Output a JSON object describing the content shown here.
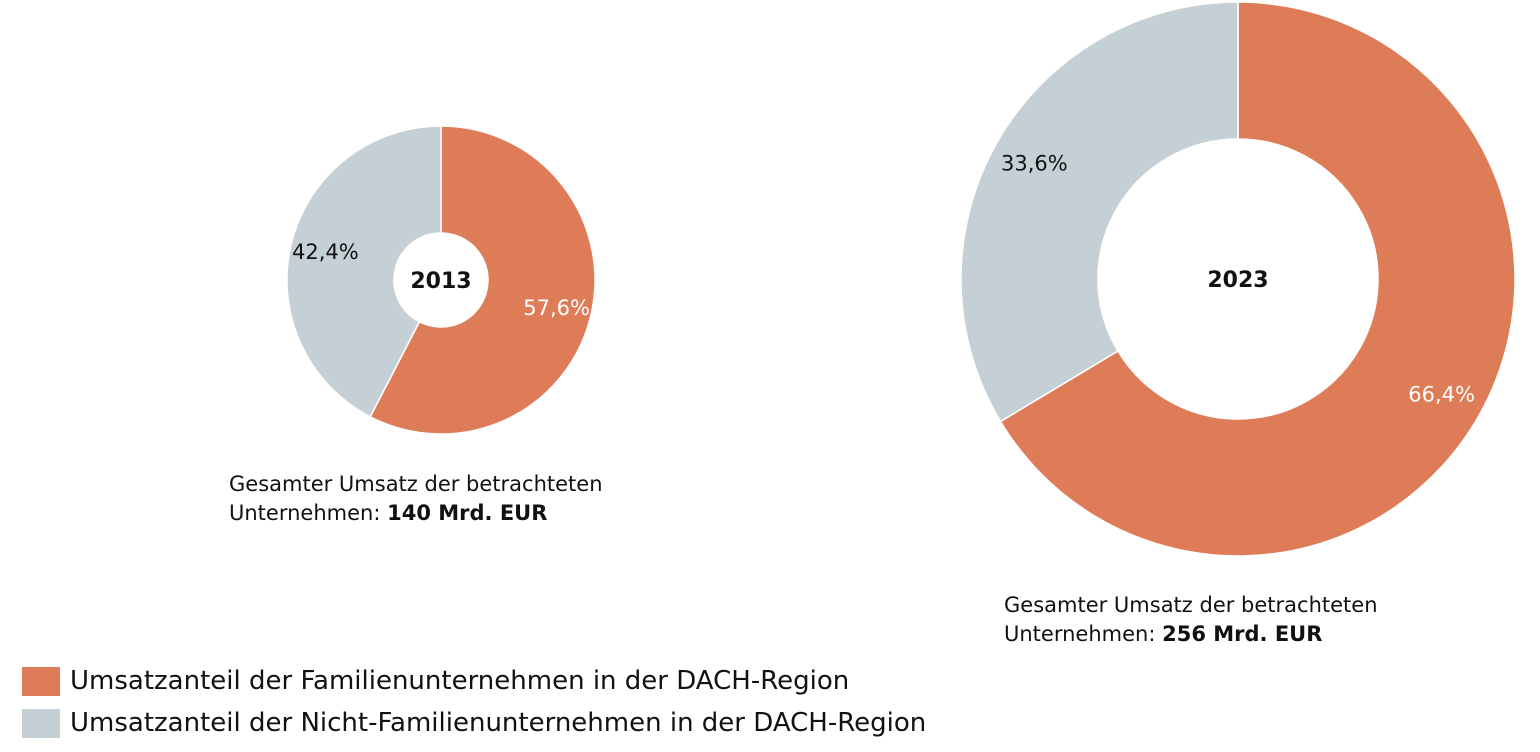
{
  "colors": {
    "family": "#DF7C58",
    "non_family": "#C5D0D6",
    "label_on_family": "#ffffff",
    "label_on_non_family": "#111111"
  },
  "chart_data": [
    {
      "type": "pie",
      "center_label": "2013",
      "slices": [
        {
          "series": "family",
          "value": 57.6,
          "label": "57,6%"
        },
        {
          "series": "non_family",
          "value": 42.4,
          "label": "42,4%"
        }
      ],
      "caption_text": "Gesamter Umsatz der betrachteten Unternehmen:",
      "caption_value": "140 Mrd. EUR",
      "total_value": 140
    },
    {
      "type": "pie",
      "center_label": "2023",
      "slices": [
        {
          "series": "family",
          "value": 66.4,
          "label": "66,4%"
        },
        {
          "series": "non_family",
          "value": 33.6,
          "label": "33,6%"
        }
      ],
      "caption_text": "Gesamter Umsatz der betrachteten Unternehmen:",
      "caption_value": "256 Mrd. EUR",
      "total_value": 256
    }
  ],
  "captions": [
    {
      "line1": "Gesamter Umsatz der betrachteten",
      "line2_prefix": "Unternehmen:",
      "value": "140 Mrd. EUR"
    },
    {
      "line1": "Gesamter Umsatz der betrachteten",
      "line2_prefix": "Unternehmen:",
      "value": "256 Mrd. EUR"
    }
  ],
  "legend": {
    "items": [
      {
        "label": "Umsatzanteil der Familienunternehmen in der DACH-Region",
        "color": "#DF7C58"
      },
      {
        "label": "Umsatzanteil der Nicht-Familienunternehmen in der DACH-Region",
        "color": "#C5D0D6"
      }
    ]
  }
}
